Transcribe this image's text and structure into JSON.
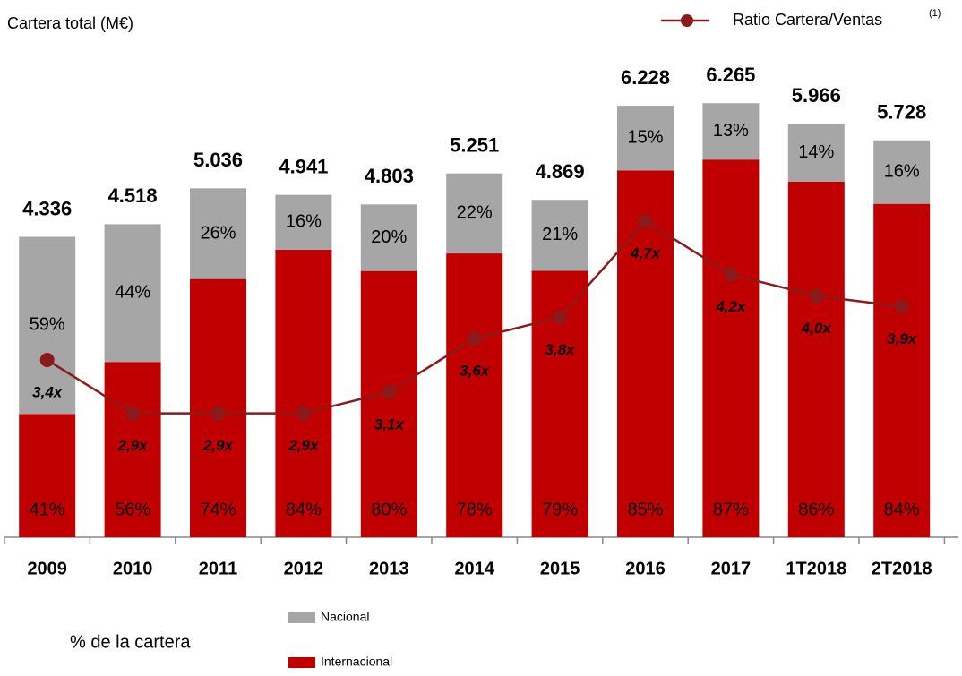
{
  "chart_data": {
    "type": "bar",
    "stacked": true,
    "title": "Cartera total (M€)",
    "legend_title": "% de la cartera",
    "categories": [
      "2009",
      "2010",
      "2011",
      "2012",
      "2013",
      "2014",
      "2015",
      "2016",
      "2017",
      "1T2018",
      "2T2018"
    ],
    "totals": {
      "values": [
        4336,
        4518,
        5036,
        4941,
        4803,
        5251,
        4869,
        6228,
        6265,
        5966,
        5728
      ],
      "value_labels": [
        "4.336",
        "4.518",
        "5.036",
        "4.941",
        "4.803",
        "5.251",
        "4.869",
        "6.228",
        "6.265",
        "5.966",
        "5.728"
      ]
    },
    "series": [
      {
        "name": "Internacional",
        "color": "#c00000",
        "values": [
          41,
          56,
          74,
          84,
          80,
          78,
          79,
          85,
          87,
          86,
          84
        ],
        "value_labels": [
          "41%",
          "56%",
          "74%",
          "84%",
          "80%",
          "78%",
          "79%",
          "85%",
          "87%",
          "86%",
          "84%"
        ]
      },
      {
        "name": "Nacional",
        "color": "#a6a6a6",
        "values": [
          59,
          44,
          26,
          16,
          20,
          22,
          21,
          15,
          13,
          14,
          16
        ],
        "value_labels": [
          "59%",
          "44%",
          "26%",
          "16%",
          "20%",
          "22%",
          "21%",
          "15%",
          "13%",
          "14%",
          "16%"
        ]
      }
    ],
    "line": {
      "name": "Ratio Cartera/Ventas",
      "note": "(1)",
      "type": "line",
      "axis": "y2",
      "color": "#8b1a1a",
      "values": [
        3.4,
        2.9,
        2.9,
        2.9,
        3.1,
        3.6,
        3.8,
        4.7,
        4.2,
        4.0,
        3.9
      ],
      "value_labels": [
        "3,4x",
        "2,9x",
        "2,9x",
        "2,9x",
        "3,1x",
        "3,6x",
        "3,8x",
        "4,7x",
        "4,2x",
        "4,0x",
        "3,9x"
      ]
    },
    "ylim": [
      0,
      6720
    ],
    "y2lim": [
      1.74,
      6.1
    ]
  }
}
